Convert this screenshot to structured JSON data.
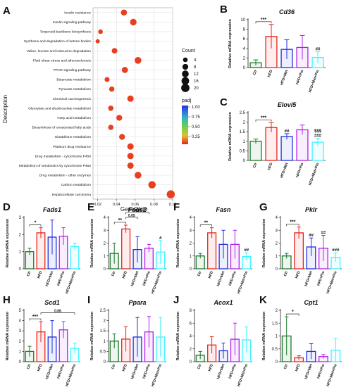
{
  "colors": {
    "Ctr": "#1a7a2a",
    "HFD": "#e8231e",
    "HFD+Met": "#1f2de0",
    "HFD+Pio": "#b020e8",
    "HFD+Met+Pio": "#3ff2ff",
    "dot": "#e8401f",
    "grid": "#dddddd"
  },
  "panel_a": {
    "letter": "A",
    "xlabel": "GeneRatio",
    "ylabel": "Description",
    "count_title": "Count",
    "count_levels": [
      "4",
      "8",
      "12",
      "16",
      "20"
    ],
    "padj_title": "padj",
    "padj_ticks": [
      "1.00",
      "0.75",
      "0.50",
      "0.25"
    ]
  },
  "bar_common": {
    "ylabel": "Relative mRNA expression",
    "groups": [
      "Ctr",
      "HFD",
      "HFD+Met",
      "HFD+Pio",
      "HFD+Met+Pio"
    ]
  },
  "chart_data": [
    {
      "type": "scatter",
      "panel": "A",
      "xlabel": "GeneRatio",
      "ylabel": "Description",
      "xlim": [
        0.015,
        0.1
      ],
      "xticks": [
        0.02,
        0.04,
        0.06,
        0.08,
        0.1
      ],
      "xtick_labels": [
        "0.02",
        "0.04",
        "0.06",
        "0.08",
        "0.10"
      ],
      "grid": true,
      "legend": "right",
      "categories": [
        "Insulin resistance",
        "Insulin signaling pathway",
        "Terpenoid backbone biosynthesis",
        "Synthesis and degradation of ketone bodies",
        "Valine, leucine and isoleucine degradation",
        "Fluid shear stress and atherosclerosis",
        "PPAR signaling pathway",
        "Butanoate metabolism",
        "Pyruvate metabolism",
        "Chemical carcinogenesis",
        "Glyoxylate and dicarboxylate metabolism",
        "Fatty acid metabolism",
        "Biosynthesis of unsaturated fatty acids",
        "Glutathione metabolism",
        "Platinum drug resistance",
        "Drug metabolism - cytochrome P450",
        "Metabolism of xenobiotics by cytochrome P450",
        "Drug metabolism - other enzymes",
        "Carbon metabolism",
        "Hepatocellular carcinoma"
      ],
      "x": [
        0.048,
        0.058,
        0.023,
        0.02,
        0.038,
        0.063,
        0.049,
        0.03,
        0.035,
        0.055,
        0.034,
        0.043,
        0.034,
        0.046,
        0.055,
        0.055,
        0.055,
        0.063,
        0.078,
        0.098
      ],
      "count": [
        9,
        11,
        4,
        3,
        7,
        12,
        9,
        5,
        6,
        10,
        6,
        8,
        6,
        8,
        10,
        10,
        10,
        12,
        15,
        19
      ],
      "padj": [
        0.02,
        0.02,
        0.03,
        0.03,
        0.02,
        0.02,
        0.02,
        0.02,
        0.02,
        0.02,
        0.02,
        0.02,
        0.02,
        0.02,
        0.02,
        0.02,
        0.02,
        0.02,
        0.02,
        0.02
      ]
    },
    {
      "type": "bar",
      "panel": "B",
      "title": "Cd36",
      "ylim": [
        0,
        10
      ],
      "yticks": [
        0,
        2,
        4,
        6,
        8,
        10
      ],
      "values": [
        1.0,
        6.5,
        3.8,
        4.2,
        2.1
      ],
      "errors": [
        0.6,
        2.5,
        2.0,
        2.5,
        1.2
      ],
      "annotations": [
        {
          "text": "***",
          "from": 0,
          "to": 1
        },
        {
          "text": "##",
          "on": 4
        }
      ]
    },
    {
      "type": "bar",
      "panel": "C",
      "title": "Elovl5",
      "ylim": [
        0,
        2.5
      ],
      "yticks": [
        0.0,
        0.5,
        1.0,
        1.5,
        2.0,
        2.5
      ],
      "values": [
        1.0,
        1.72,
        1.25,
        1.6,
        0.95
      ],
      "errors": [
        0.12,
        0.25,
        0.15,
        0.25,
        0.2
      ],
      "annotations": [
        {
          "text": "***",
          "from": 0,
          "to": 1
        },
        {
          "text": "##",
          "on": 2
        },
        {
          "text": "###",
          "on": 4
        },
        {
          "text": "$$$",
          "on": 4
        }
      ]
    },
    {
      "type": "bar",
      "panel": "D",
      "title": "Fads1",
      "ylim": [
        0,
        3
      ],
      "yticks": [
        0,
        1,
        2,
        3
      ],
      "values": [
        1.0,
        2.1,
        1.85,
        1.9,
        1.3
      ],
      "errors": [
        0.2,
        0.3,
        1.0,
        0.5,
        0.2
      ],
      "annotations": [
        {
          "text": "*",
          "from": 0,
          "to": 1
        }
      ]
    },
    {
      "type": "bar",
      "panel": "E",
      "title": "Fads2",
      "ylim": [
        0,
        4
      ],
      "yticks": [
        0,
        1,
        2,
        3,
        4
      ],
      "values": [
        1.2,
        3.1,
        1.5,
        1.6,
        1.3
      ],
      "errors": [
        0.8,
        0.3,
        1.0,
        0.3,
        0.9
      ],
      "annotations": [
        {
          "text": "**",
          "from": 0,
          "to": 1
        },
        {
          "text": "0.05",
          "from": 1,
          "to": 2
        },
        {
          "text": "0.07",
          "from": 1,
          "to": 3
        },
        {
          "text": "#",
          "on": 4
        }
      ]
    },
    {
      "type": "bar",
      "panel": "F",
      "title": "Fasn",
      "ylim": [
        0,
        4
      ],
      "yticks": [
        0,
        1,
        2,
        3,
        4
      ],
      "values": [
        1.0,
        2.8,
        1.9,
        1.9,
        0.95
      ],
      "errors": [
        0.2,
        0.4,
        1.1,
        1.1,
        0.3
      ],
      "annotations": [
        {
          "text": "**",
          "from": 0,
          "to": 1
        },
        {
          "text": "##",
          "on": 4
        }
      ]
    },
    {
      "type": "bar",
      "panel": "G",
      "title": "Pklr",
      "ylim": [
        0,
        4
      ],
      "yticks": [
        0,
        1,
        2,
        3,
        4
      ],
      "values": [
        1.0,
        2.8,
        1.7,
        1.6,
        0.9
      ],
      "errors": [
        0.2,
        0.45,
        0.7,
        1.0,
        0.35
      ],
      "annotations": [
        {
          "text": "***",
          "from": 0,
          "to": 1
        },
        {
          "text": "##",
          "on": 2
        },
        {
          "text": "##",
          "on": 3
        },
        {
          "text": "###",
          "on": 4
        }
      ]
    },
    {
      "type": "bar",
      "panel": "H",
      "title": "Scd1",
      "ylim": [
        0,
        5
      ],
      "yticks": [
        0,
        1,
        2,
        3,
        4,
        5
      ],
      "values": [
        1.0,
        2.9,
        2.4,
        3.1,
        1.3
      ],
      "errors": [
        0.5,
        1.0,
        1.6,
        0.8,
        0.5
      ],
      "annotations": [
        {
          "text": "***",
          "from": 0,
          "to": 1
        },
        {
          "text": "0.06",
          "from": 1,
          "to": 4
        }
      ]
    },
    {
      "type": "bar",
      "panel": "I",
      "title": "Ppara",
      "ylim": [
        0,
        2.5
      ],
      "yticks": [
        0.0,
        0.5,
        1.0,
        1.5,
        2.0,
        2.5
      ],
      "values": [
        1.0,
        1.1,
        1.2,
        1.45,
        1.2
      ],
      "errors": [
        0.35,
        0.6,
        0.95,
        0.75,
        0.95
      ],
      "annotations": []
    },
    {
      "type": "bar",
      "panel": "J",
      "title": "Acox1",
      "ylim": [
        0,
        8
      ],
      "yticks": [
        0,
        2,
        4,
        6,
        8
      ],
      "values": [
        1.0,
        2.6,
        1.7,
        3.5,
        3.4
      ],
      "errors": [
        0.6,
        1.3,
        1.2,
        2.5,
        2.0
      ],
      "annotations": []
    },
    {
      "type": "bar",
      "panel": "K",
      "title": "Cpt1",
      "ylim": [
        0,
        2.0
      ],
      "yticks": [
        0.0,
        0.5,
        1.0,
        1.5,
        2.0
      ],
      "values": [
        1.0,
        0.15,
        0.4,
        0.2,
        0.45
      ],
      "errors": [
        0.75,
        0.08,
        0.3,
        0.08,
        0.45
      ],
      "annotations": [
        {
          "text": "*",
          "from": 0,
          "to": 1
        }
      ]
    }
  ]
}
